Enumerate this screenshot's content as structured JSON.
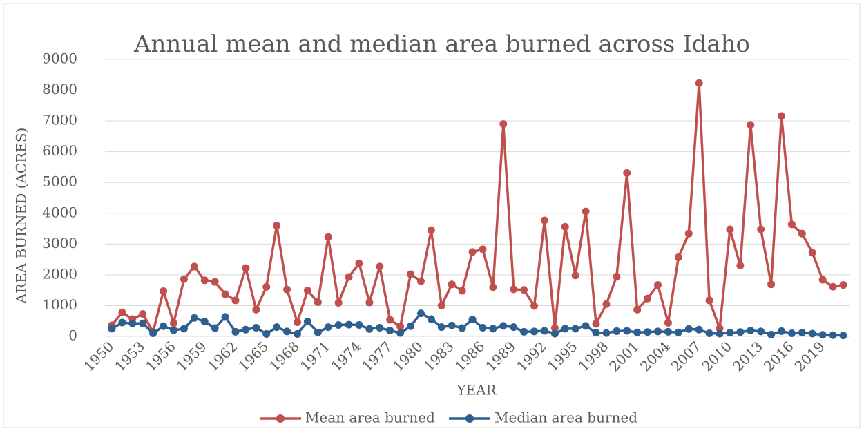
{
  "chart_data": {
    "type": "line",
    "title": "Annual mean and median area burned across Idaho",
    "xlabel": "YEAR",
    "ylabel": "AREA BURNED (ACRES)",
    "x": [
      1950,
      1951,
      1952,
      1953,
      1954,
      1955,
      1956,
      1957,
      1958,
      1959,
      1960,
      1961,
      1962,
      1963,
      1964,
      1965,
      1966,
      1967,
      1968,
      1969,
      1970,
      1971,
      1972,
      1973,
      1974,
      1975,
      1976,
      1977,
      1978,
      1979,
      1980,
      1981,
      1982,
      1983,
      1984,
      1985,
      1986,
      1987,
      1988,
      1989,
      1990,
      1991,
      1992,
      1993,
      1994,
      1995,
      1996,
      1997,
      1998,
      1999,
      2000,
      2001,
      2002,
      2003,
      2004,
      2005,
      2006,
      2007,
      2008,
      2009,
      2010,
      2011,
      2012,
      2013,
      2014,
      2015,
      2016,
      2017,
      2018,
      2019,
      2020,
      2021
    ],
    "xlim": [
      1950,
      2021
    ],
    "xticks": [
      1950,
      1953,
      1956,
      1959,
      1962,
      1965,
      1968,
      1971,
      1974,
      1977,
      1980,
      1983,
      1986,
      1989,
      1992,
      1995,
      1998,
      2001,
      2004,
      2007,
      2010,
      2013,
      2016,
      2019
    ],
    "ylim": [
      0,
      9000
    ],
    "yticks": [
      0,
      1000,
      2000,
      3000,
      4000,
      5000,
      6000,
      7000,
      8000,
      9000
    ],
    "grid": true,
    "legend": "bottom",
    "series": [
      {
        "name": "Mean area burned",
        "color": "#c0504d",
        "values": [
          360,
          780,
          560,
          730,
          150,
          1470,
          430,
          1860,
          2270,
          1820,
          1770,
          1370,
          1170,
          2220,
          870,
          1610,
          3600,
          1520,
          460,
          1490,
          1110,
          3230,
          1090,
          1930,
          2370,
          1100,
          2270,
          540,
          320,
          2020,
          1790,
          3450,
          1000,
          1690,
          1480,
          2740,
          2830,
          1600,
          6900,
          1530,
          1510,
          990,
          3770,
          270,
          3560,
          1980,
          4060,
          410,
          1050,
          1940,
          5310,
          870,
          1230,
          1670,
          440,
          2570,
          3340,
          8230,
          1170,
          260,
          3480,
          2300,
          6870,
          3480,
          1690,
          7160,
          3640,
          3340,
          2720,
          1840,
          1610,
          1670
        ]
      },
      {
        "name": "Median area burned",
        "color": "#2f5f8f",
        "values": [
          250,
          450,
          420,
          420,
          100,
          330,
          200,
          250,
          600,
          480,
          270,
          630,
          150,
          220,
          280,
          80,
          300,
          160,
          80,
          480,
          130,
          300,
          370,
          380,
          370,
          240,
          280,
          190,
          110,
          330,
          750,
          560,
          300,
          350,
          270,
          550,
          280,
          250,
          340,
          300,
          150,
          160,
          180,
          90,
          250,
          250,
          340,
          120,
          110,
          170,
          180,
          130,
          140,
          160,
          150,
          130,
          240,
          220,
          100,
          90,
          120,
          140,
          190,
          160,
          60,
          170,
          100,
          120,
          90,
          50,
          40,
          30
        ]
      }
    ]
  }
}
